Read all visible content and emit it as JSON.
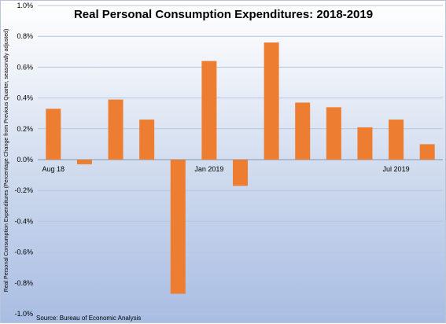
{
  "chart_data": {
    "type": "bar",
    "title": "Real Personal Consumption Expenditures: 2018-2019",
    "ylabel": "Real Personal Consumption Expenditures (Percentage Change from Previous Quarter, seasonally adjusted)",
    "xlabel": "",
    "source": "Source: Bureau of Economic Analysis",
    "x_tick_labels": [
      {
        "index": 0,
        "label": "Aug 18"
      },
      {
        "index": 5,
        "label": "Jan 2019"
      },
      {
        "index": 11,
        "label": "Jul 2019"
      }
    ],
    "y_ticks": [
      "1.0%",
      "0.8%",
      "0.6%",
      "0.4%",
      "0.2%",
      "0.0%",
      "-0.2%",
      "-0.4%",
      "-0.6%",
      "-0.8%",
      "-1.0%"
    ],
    "ylim": [
      -1.0,
      1.0
    ],
    "values": [
      0.33,
      -0.03,
      0.39,
      0.26,
      -0.87,
      0.64,
      -0.17,
      0.76,
      0.37,
      0.34,
      0.21,
      0.26,
      0.1
    ],
    "bar_color": "#ed7d31",
    "grid": true,
    "grid_color": "#b5c7e3"
  }
}
